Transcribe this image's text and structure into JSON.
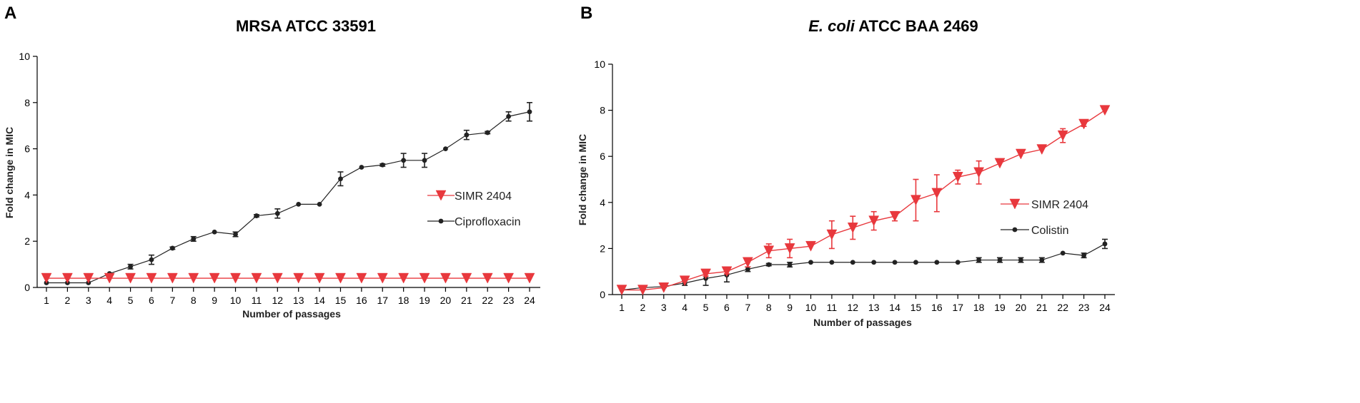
{
  "panels": {
    "a": {
      "letter": "A"
    },
    "b": {
      "letter": "B",
      "title_italic": "E. coli",
      "title_rest": " ATCC BAA 2469"
    }
  },
  "chart_data": [
    {
      "type": "line",
      "title": "MRSA ATCC 33591",
      "xlabel": "Number of passages",
      "ylabel": "Fold change in MIC",
      "xlim": [
        1,
        24
      ],
      "ylim": [
        0,
        10
      ],
      "yticks": [
        0,
        2,
        4,
        6,
        8,
        10
      ],
      "categories": [
        "1",
        "2",
        "3",
        "4",
        "5",
        "6",
        "7",
        "8",
        "9",
        "10",
        "11",
        "12",
        "13",
        "14",
        "15",
        "16",
        "17",
        "18",
        "19",
        "20",
        "21",
        "22",
        "23",
        "24"
      ],
      "legend_position": "center-right",
      "series": [
        {
          "name": "SIMR 2404",
          "color": "#e8383d",
          "marker": "triangle-down",
          "values": [
            0.4,
            0.4,
            0.4,
            0.4,
            0.4,
            0.4,
            0.4,
            0.4,
            0.4,
            0.4,
            0.4,
            0.4,
            0.4,
            0.4,
            0.4,
            0.4,
            0.4,
            0.4,
            0.4,
            0.4,
            0.4,
            0.4,
            0.4,
            0.4
          ],
          "errors": [
            0,
            0,
            0,
            0,
            0,
            0,
            0,
            0,
            0,
            0,
            0,
            0,
            0,
            0,
            0,
            0,
            0,
            0,
            0,
            0,
            0,
            0,
            0,
            0
          ]
        },
        {
          "name": "Ciprofloxacin",
          "color": "#222222",
          "marker": "circle",
          "values": [
            0.2,
            0.2,
            0.2,
            0.6,
            0.9,
            1.2,
            1.7,
            2.1,
            2.4,
            2.3,
            3.1,
            3.2,
            3.6,
            3.6,
            4.7,
            5.2,
            5.3,
            5.5,
            5.5,
            6.0,
            6.6,
            6.7,
            7.4,
            7.6
          ],
          "errors": [
            0,
            0,
            0,
            0,
            0.1,
            0.2,
            0.05,
            0.1,
            0,
            0.1,
            0.05,
            0.2,
            0,
            0,
            0.3,
            0,
            0.05,
            0.3,
            0.3,
            0,
            0.2,
            0.05,
            0.2,
            0.4
          ]
        }
      ]
    },
    {
      "type": "line",
      "title": "E. coli ATCC BAA 2469",
      "xlabel": "Number of passages",
      "ylabel": "Fold change in MIC",
      "xlim": [
        1,
        24
      ],
      "ylim": [
        0,
        10
      ],
      "yticks": [
        0,
        2,
        4,
        6,
        8,
        10
      ],
      "categories": [
        "1",
        "2",
        "3",
        "4",
        "5",
        "6",
        "7",
        "8",
        "9",
        "10",
        "11",
        "12",
        "13",
        "14",
        "15",
        "16",
        "17",
        "18",
        "19",
        "20",
        "21",
        "22",
        "23",
        "24"
      ],
      "legend_position": "center-right",
      "series": [
        {
          "name": "SIMR 2404",
          "color": "#e8383d",
          "marker": "triangle-down",
          "values": [
            0.2,
            0.2,
            0.3,
            0.6,
            0.9,
            1.0,
            1.4,
            1.9,
            2.0,
            2.1,
            2.6,
            2.9,
            3.2,
            3.4,
            4.1,
            4.4,
            5.1,
            5.3,
            5.7,
            6.1,
            6.3,
            6.9,
            7.4,
            8.0
          ],
          "errors": [
            0,
            0,
            0,
            0,
            0.1,
            0.1,
            0.2,
            0.3,
            0.4,
            0,
            0.6,
            0.5,
            0.4,
            0.2,
            0.9,
            0.8,
            0.3,
            0.5,
            0,
            0,
            0,
            0.3,
            0.1,
            0
          ]
        },
        {
          "name": "Colistin",
          "color": "#222222",
          "marker": "circle",
          "values": [
            0.2,
            0.3,
            0.35,
            0.5,
            0.7,
            0.85,
            1.1,
            1.3,
            1.3,
            1.4,
            1.4,
            1.4,
            1.4,
            1.4,
            1.4,
            1.4,
            1.4,
            1.5,
            1.5,
            1.5,
            1.5,
            1.8,
            1.7,
            2.2
          ],
          "errors": [
            0,
            0.05,
            0.05,
            0.1,
            0.3,
            0.3,
            0.1,
            0.05,
            0.1,
            0,
            0,
            0,
            0,
            0,
            0,
            0,
            0,
            0.1,
            0.1,
            0.1,
            0.1,
            0,
            0.1,
            0.2
          ]
        }
      ]
    }
  ]
}
